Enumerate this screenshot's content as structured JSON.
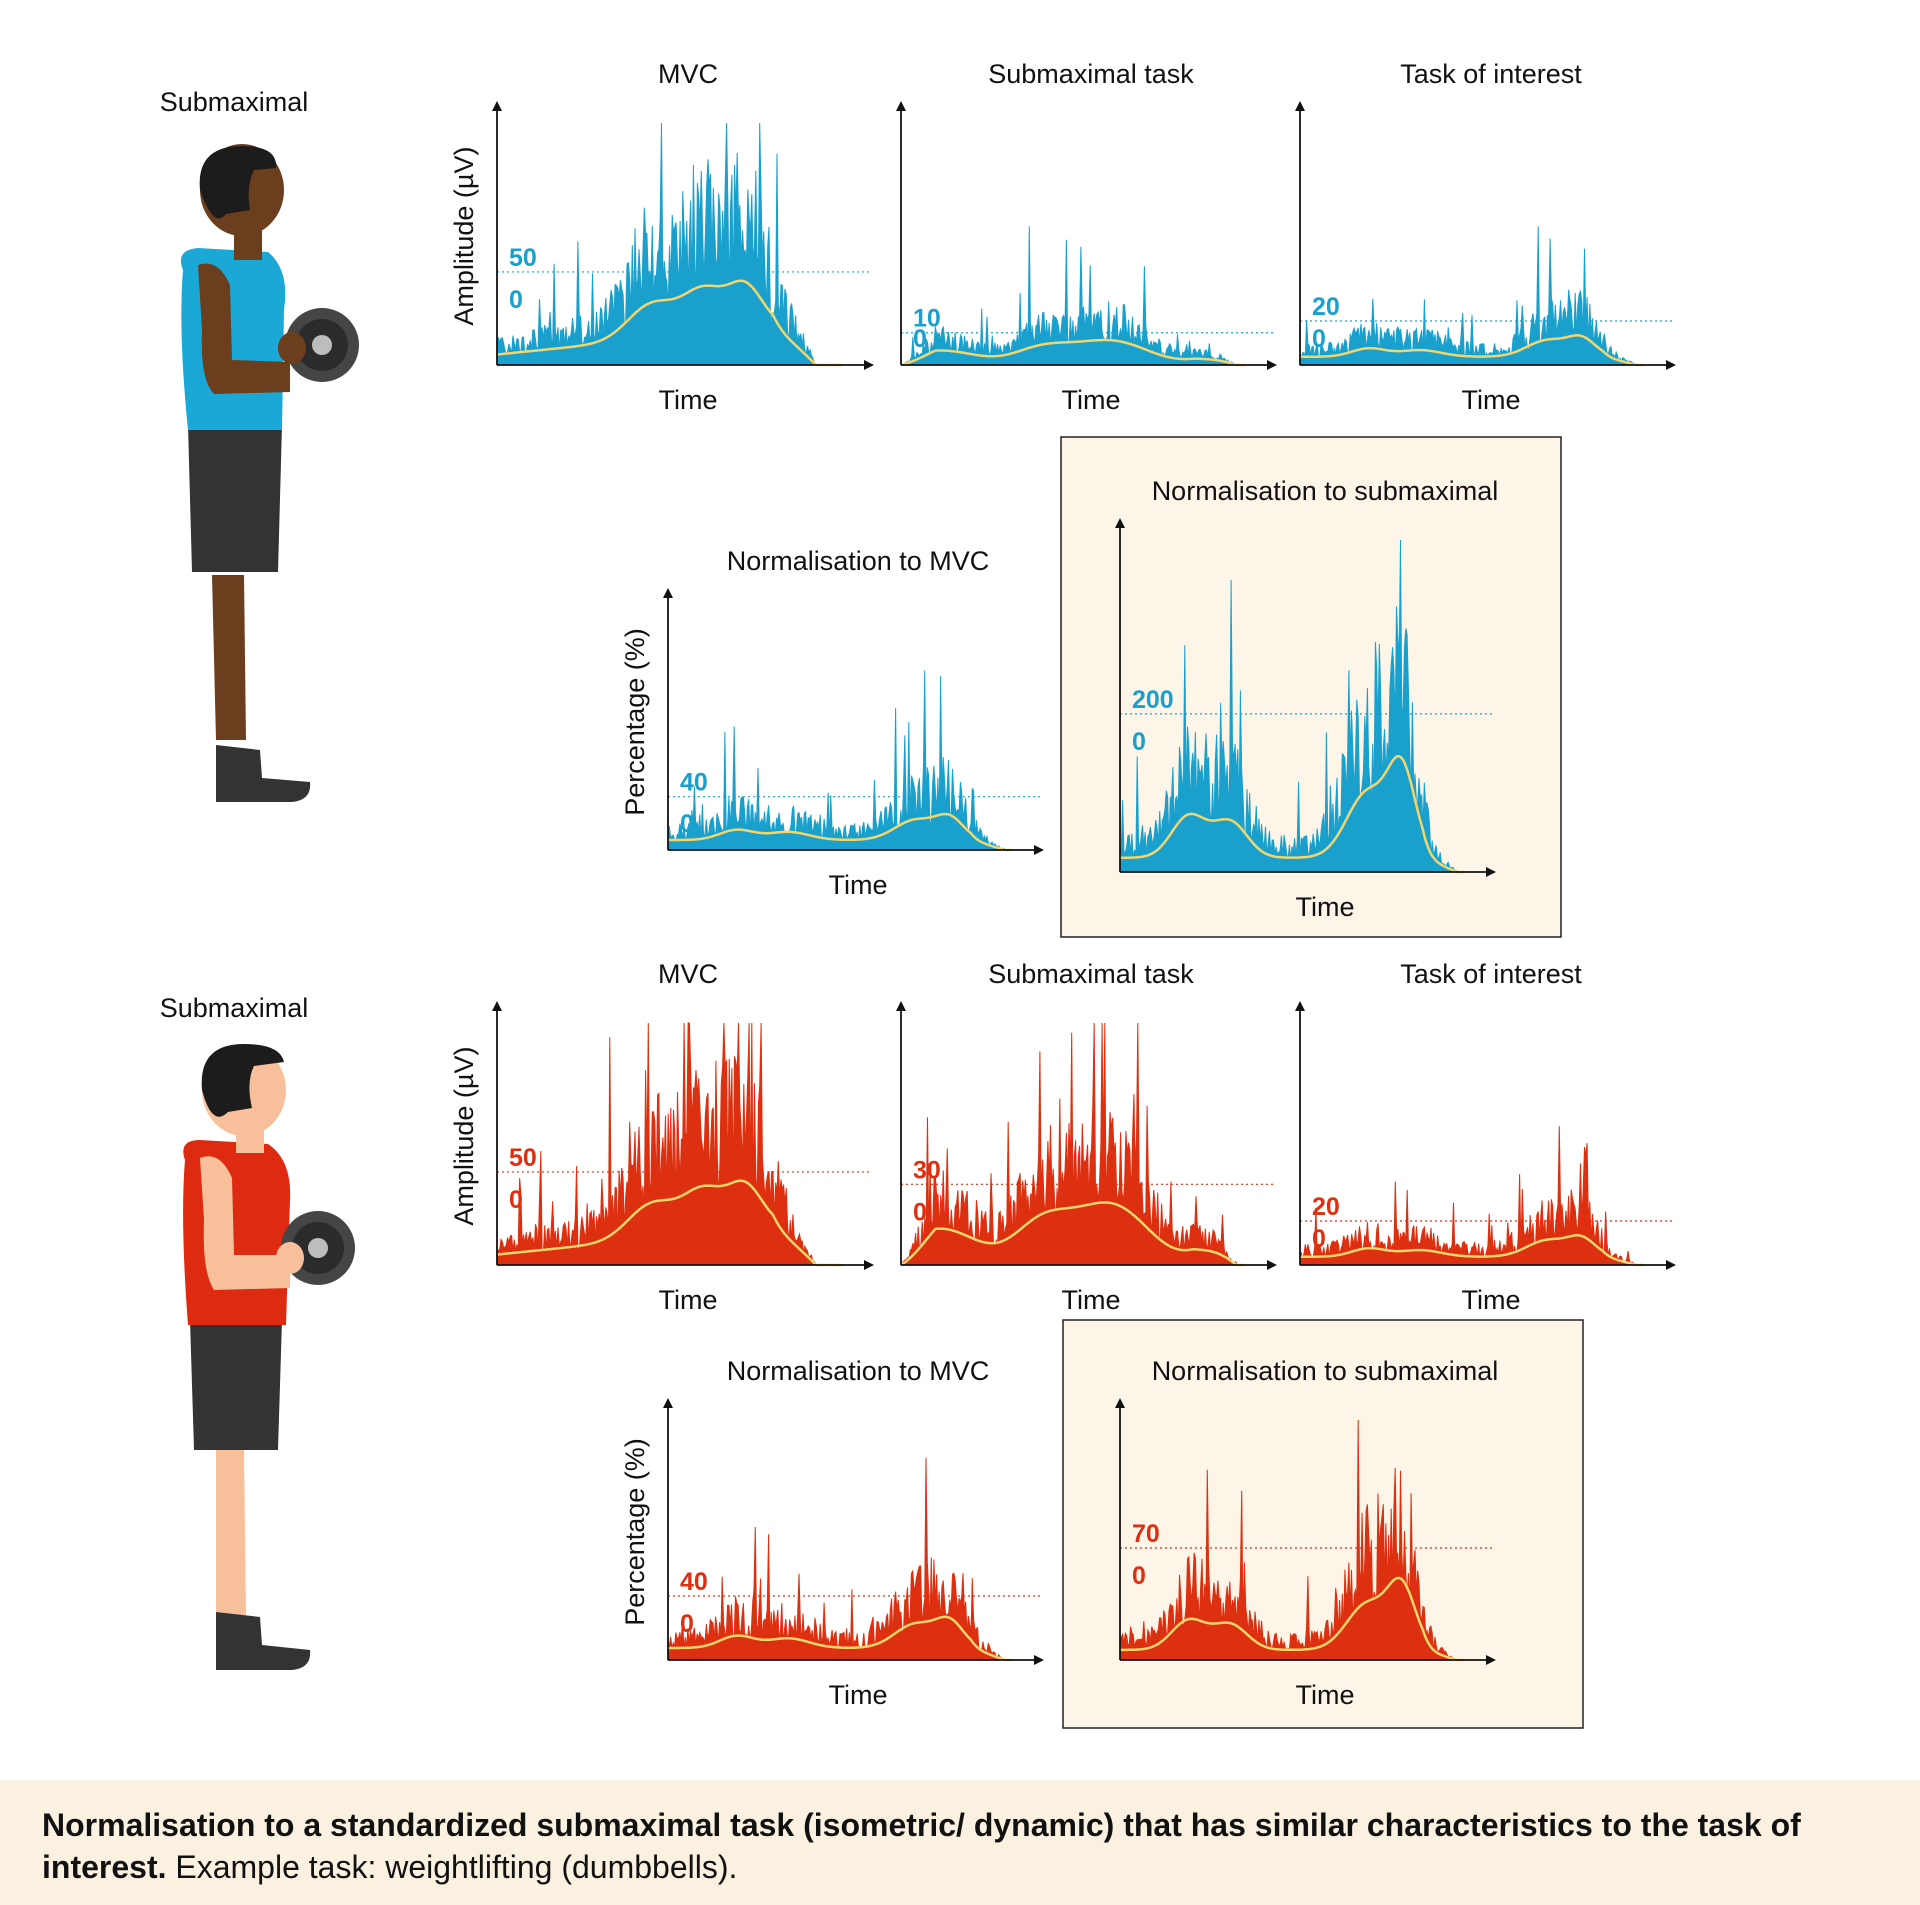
{
  "colors": {
    "blue": "#1aa0cc",
    "red": "#dd3010",
    "envelope": "#f2d56b",
    "highlight_bg": "#fdf5e8",
    "athlete1_skin": "#6b3e1d",
    "athlete1_shirt": "#1aa9d6",
    "athlete2_skin": "#f8c09a",
    "athlete2_shirt": "#dd2a10"
  },
  "icons": {
    "athlete_top": "person-dumbbell-curl-icon",
    "athlete_bottom": "person-dumbbell-curl-icon"
  },
  "rows": [
    {
      "athlete_label": "Submaximal",
      "color": "blue",
      "charts": [
        {
          "title": "MVC",
          "xlabel": "Time",
          "ylabel": "Amplitude (µV)",
          "threshold": "50",
          "zero": "0",
          "profile": "mvc",
          "thresholdLevel": 50,
          "yMax": 130
        },
        {
          "title": "Submaximal task",
          "xlabel": "Time",
          "ylabel": "",
          "threshold": "10",
          "zero": "0",
          "profile": "sub",
          "thresholdLevel": 10,
          "yMax": 75
        },
        {
          "title": "Task of interest",
          "xlabel": "Time",
          "ylabel": "",
          "threshold": "20",
          "zero": "0",
          "profile": "task",
          "thresholdLevel": 20,
          "yMax": 110
        }
      ],
      "norm": [
        {
          "title": "Normalisation to MVC",
          "xlabel": "Time",
          "ylabel": "Percentage (%)",
          "threshold": "40",
          "zero": "0",
          "profile": "task",
          "thresholdLevel": 40,
          "yMax": 180,
          "highlight": false
        },
        {
          "title": "Normalisation to submaximal",
          "xlabel": "Time",
          "ylabel": "",
          "threshold": "200",
          "zero": "0",
          "profile": "normsub",
          "thresholdLevel": 200,
          "yMax": 420,
          "highlight": true
        }
      ]
    },
    {
      "athlete_label": "Submaximal",
      "color": "red",
      "charts": [
        {
          "title": "MVC",
          "xlabel": "Time",
          "ylabel": "Amplitude (µV)",
          "threshold": "50",
          "zero": "0",
          "profile": "mvc",
          "thresholdLevel": 50,
          "yMax": 130
        },
        {
          "title": "Submaximal task",
          "xlabel": "Time",
          "ylabel": "",
          "threshold": "30",
          "zero": "0",
          "profile": "sub",
          "thresholdLevel": 30,
          "yMax": 90
        },
        {
          "title": "Task of interest",
          "xlabel": "Time",
          "ylabel": "",
          "threshold": "20",
          "zero": "0",
          "profile": "task",
          "thresholdLevel": 20,
          "yMax": 110
        }
      ],
      "norm": [
        {
          "title": "Normalisation to MVC",
          "xlabel": "Time",
          "ylabel": "Percentage (%)",
          "threshold": "40",
          "zero": "0",
          "profile": "task",
          "thresholdLevel": 40,
          "yMax": 150,
          "highlight": false
        },
        {
          "title": "Normalisation to submaximal",
          "xlabel": "Time",
          "ylabel": "",
          "threshold": "70",
          "zero": "0",
          "profile": "normsub",
          "thresholdLevel": 70,
          "yMax": 150,
          "highlight": true
        }
      ]
    }
  ],
  "caption": {
    "bold": "Normalisation to a standardized submaximal task (isometric/ dynamic) that has similar characteristics to the task of interest.",
    "normal": " Example task: weightlifting (dumbbells)."
  }
}
